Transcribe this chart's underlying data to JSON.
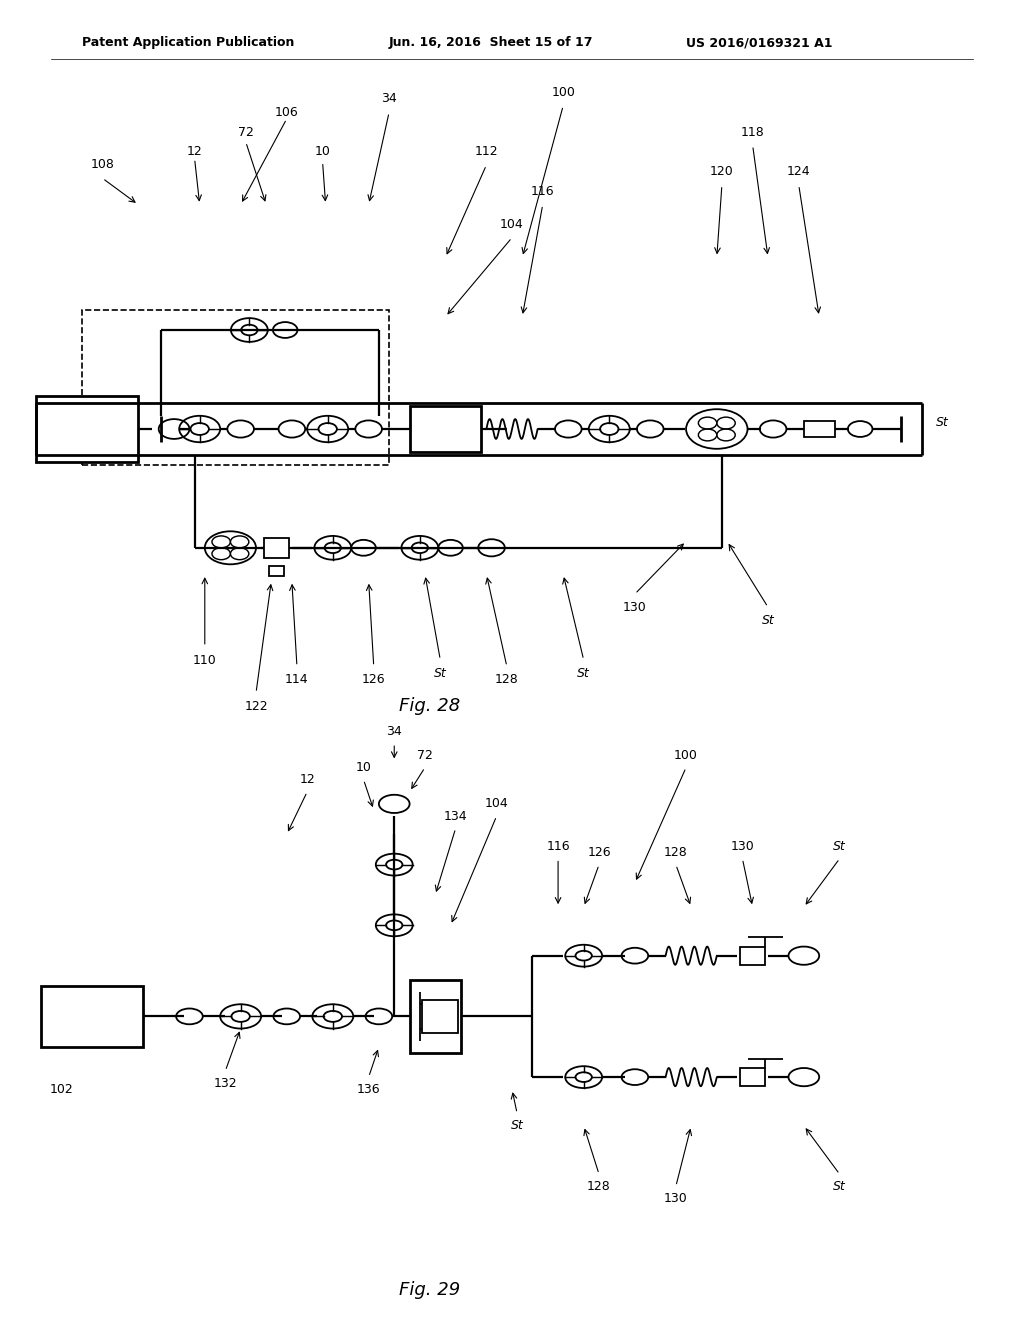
{
  "bg_color": "#ffffff",
  "header_text": "Patent Application Publication",
  "header_date": "Jun. 16, 2016  Sheet 15 of 17",
  "header_patent": "US 2016/0169321 A1",
  "fig28_label": "Fig. 28",
  "fig29_label": "Fig. 29"
}
